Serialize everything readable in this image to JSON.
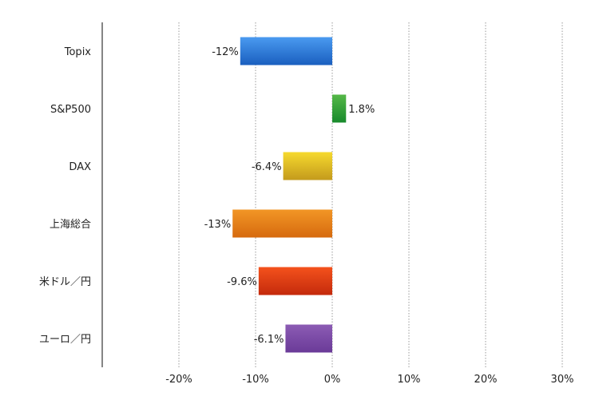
{
  "chart_data": {
    "type": "bar",
    "orientation": "horizontal",
    "categories": [
      "Topix",
      "S&P500",
      "DAX",
      "上海総合",
      "米ドル／円",
      "ユーロ／円"
    ],
    "values": [
      -12,
      1.8,
      -6.4,
      -13,
      -9.6,
      -6.1
    ],
    "data_labels": [
      "-12%",
      "1.8%",
      "-6.4%",
      "-13%",
      "-9.6%",
      "-6.1%"
    ],
    "colors": [
      [
        "#4a9af0",
        "#1a5fbf"
      ],
      [
        "#55b848",
        "#188a2c"
      ],
      [
        "#f6da2e",
        "#c49a1c"
      ],
      [
        "#f29626",
        "#d66a0e"
      ],
      [
        "#f4521c",
        "#c42a0c"
      ],
      [
        "#8c5cb4",
        "#6a3a98"
      ]
    ],
    "xlim": [
      -30,
      30
    ],
    "xticks": [
      -20,
      -10,
      0,
      10,
      20,
      30
    ],
    "xtick_labels": [
      "-20%",
      "-10%",
      "0%",
      "10%",
      "20%",
      "30%"
    ],
    "title": "",
    "xlabel": "",
    "ylabel": "",
    "grid": "vertical dotted",
    "legend": "none"
  }
}
